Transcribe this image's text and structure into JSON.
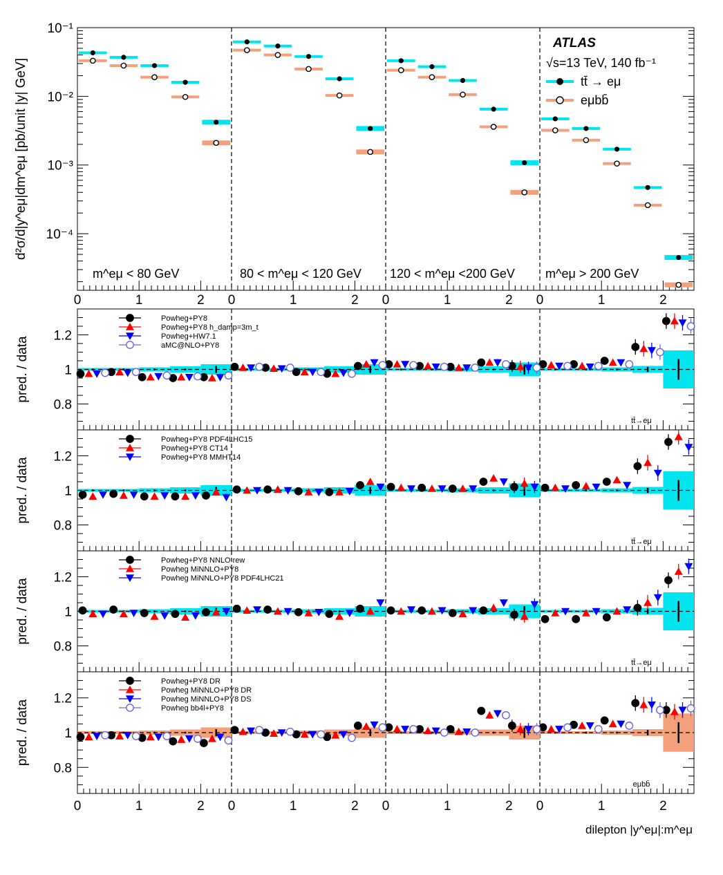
{
  "figure": {
    "experiment": "ATLAS",
    "energy_label": "√s=13 TeV, 140 fb⁻¹",
    "xlabel": "dilepton |y^eμ|:m^eμ",
    "colors": {
      "ttbar": "#00e5ef",
      "emubb": "#f4a07a",
      "black": "#000000",
      "red": "#ff0000",
      "blue": "#0000ff",
      "purple": "#6666dd"
    }
  },
  "chart_data": [
    {
      "type": "scatter",
      "panel": "main",
      "ylabel": "d²σ/d|y^eμ|dm^eμ [pb/unit |y| GeV]",
      "yscale": "log",
      "ylim": [
        1.5e-05,
        0.1
      ],
      "yticks": [
        "10⁻¹",
        "10⁻²",
        "10⁻³",
        "10⁻⁴"
      ],
      "mass_bins": [
        "m^eμ < 80 GeV",
        "80 < m^eμ < 120 GeV",
        "120 < m^eμ <200 GeV",
        "m^eμ > 200 GeV"
      ],
      "x_tick_labels": [
        "0",
        "1",
        "2"
      ],
      "x_bin_edges": [
        0,
        0.5,
        1.0,
        1.5,
        2.0,
        2.5
      ],
      "legend": [
        "tt̄ → eμ",
        "eμbb̄"
      ],
      "series": [
        {
          "name": "tt̄ → eμ",
          "values": [
            [
              0.043,
              0.037,
              0.028,
              0.016,
              0.0042
            ],
            [
              0.062,
              0.054,
              0.038,
              0.018,
              0.0034
            ],
            [
              0.033,
              0.027,
              0.017,
              0.0065,
              0.00108
            ],
            [
              0.0047,
              0.0034,
              0.0017,
              0.00047,
              4.5e-05
            ]
          ]
        },
        {
          "name": "eμbb̄",
          "values": [
            [
              0.033,
              0.028,
              0.019,
              0.0098,
              0.0021
            ],
            [
              0.047,
              0.04,
              0.025,
              0.0103,
              0.00155
            ],
            [
              0.024,
              0.019,
              0.0106,
              0.0036,
              0.0004
            ],
            [
              0.0032,
              0.0023,
              0.00105,
              0.00026,
              1.8e-05
            ]
          ]
        }
      ]
    },
    {
      "type": "scatter",
      "panel": "ratio-1",
      "ylabel": "pred. / data",
      "ylim": [
        0.65,
        1.35
      ],
      "yticks": [
        "1.2",
        "1",
        "0.8"
      ],
      "band": "tt̄",
      "label": "tt̄→eμ",
      "series": [
        {
          "name": "Powheg+PY8",
          "values": [
            0.975,
            0.985,
            0.955,
            0.95,
            0.955,
            1.015,
            1.01,
            0.985,
            0.975,
            1.02,
            1.03,
            1.02,
            1.015,
            1.04,
            1.02,
            1.03,
            1.03,
            1.05,
            1.13,
            1.28
          ]
        },
        {
          "name": "Powheg+PY8 h_damp=3m_t",
          "values": [
            0.975,
            0.985,
            0.955,
            0.955,
            0.95,
            1.01,
            1.005,
            0.985,
            0.975,
            1.03,
            1.03,
            1.02,
            1.01,
            1.04,
            1.015,
            1.025,
            1.02,
            1.04,
            1.12,
            1.28
          ]
        },
        {
          "name": "Powheg+HW7.1",
          "values": [
            0.975,
            0.98,
            0.96,
            0.955,
            0.955,
            1.01,
            1.005,
            0.985,
            0.98,
            1.04,
            1.03,
            1.015,
            1.01,
            1.04,
            1.01,
            1.02,
            1.015,
            1.04,
            1.11,
            1.27
          ]
        },
        {
          "name": "aMC@NLO+PY8",
          "values": [
            0.98,
            0.985,
            0.965,
            0.96,
            0.965,
            1.015,
            1.01,
            0.985,
            0.975,
            1.025,
            1.025,
            1.015,
            1.01,
            1.03,
            1.01,
            1.02,
            1.02,
            1.03,
            1.1,
            1.25
          ]
        }
      ]
    },
    {
      "type": "scatter",
      "panel": "ratio-2",
      "ylabel": "pred. / data",
      "ylim": [
        0.65,
        1.35
      ],
      "yticks": [
        "1.2",
        "1",
        "0.8"
      ],
      "band": "tt̄",
      "label": "tt̄→eμ",
      "series": [
        {
          "name": "Powheg+PY8 PDF4LHC15",
          "values": [
            0.975,
            0.98,
            0.965,
            0.965,
            0.97,
            1.005,
            1.005,
            0.995,
            0.99,
            1.03,
            1.02,
            1.015,
            1.01,
            1.05,
            1.02,
            1.015,
            1.03,
            1.05,
            1.14,
            1.28
          ]
        },
        {
          "name": "Powheg+PY8 CT14",
          "values": [
            0.965,
            0.97,
            0.965,
            0.965,
            0.99,
            1.0,
            1.005,
            0.99,
            0.99,
            1.05,
            1.015,
            1.01,
            1.01,
            1.07,
            1.04,
            1.015,
            1.025,
            1.06,
            1.16,
            1.31
          ]
        },
        {
          "name": "Powheg+PY8 MMHT14",
          "values": [
            0.975,
            0.975,
            0.97,
            0.97,
            0.96,
            1.0,
            1.0,
            0.99,
            0.995,
            1.02,
            1.01,
            1.01,
            1.01,
            1.05,
            1.02,
            1.01,
            1.02,
            1.03,
            1.1,
            1.25
          ]
        }
      ]
    },
    {
      "type": "scatter",
      "panel": "ratio-3",
      "ylabel": "pred. / data",
      "ylim": [
        0.65,
        1.35
      ],
      "yticks": [
        "1.2",
        "1",
        "0.8"
      ],
      "band": "tt̄",
      "label": "tt̄→eμ",
      "series": [
        {
          "name": "Powheg+PY8 NNLO rew",
          "values": [
            1.005,
            1.01,
            0.99,
            0.985,
            0.995,
            1.015,
            1.01,
            0.995,
            0.985,
            1.015,
            1.005,
            1.005,
            0.99,
            1.005,
            0.98,
            0.955,
            0.955,
            0.965,
            1.02,
            1.18
          ]
        },
        {
          "name": "Powheg MiNNLO+PY8",
          "values": [
            0.985,
            0.985,
            0.97,
            0.965,
            0.995,
            1.005,
            1.0,
            0.99,
            0.97,
            1.0,
            1.0,
            1.0,
            0.985,
            1.02,
            0.97,
            0.99,
            0.99,
            1.0,
            1.05,
            1.23
          ]
        },
        {
          "name": "Powheg MiNNLO+PY8 PDF4LHC21",
          "values": [
            0.985,
            0.99,
            0.975,
            0.975,
            1.0,
            1.01,
            1.0,
            0.995,
            0.99,
            1.05,
            1.01,
            1.005,
            1.005,
            1.05,
            1.04,
            1.0,
            1.0,
            1.01,
            1.08,
            1.26
          ]
        }
      ]
    },
    {
      "type": "scatter",
      "panel": "ratio-4",
      "ylabel": "pred. / data",
      "ylim": [
        0.65,
        1.35
      ],
      "yticks": [
        "1.2",
        "1",
        "0.8"
      ],
      "xticks": [
        "0",
        "1",
        "2"
      ],
      "band": "eμbb̄",
      "label": "eμbb̄",
      "series": [
        {
          "name": "Powheg+PY8 DR",
          "values": [
            0.975,
            0.985,
            0.97,
            0.95,
            0.94,
            1.015,
            1.0,
            0.99,
            0.975,
            1.04,
            1.03,
            1.02,
            1.02,
            1.125,
            1.04,
            1.03,
            1.045,
            1.07,
            1.17,
            1.13
          ]
        },
        {
          "name": "Powheg MiNNLO+PY8 DR",
          "values": [
            0.975,
            0.98,
            0.975,
            0.96,
            0.965,
            1.005,
            0.995,
            0.99,
            0.985,
            1.035,
            1.02,
            1.01,
            1.005,
            1.1,
            1.02,
            1.02,
            1.04,
            1.05,
            1.16,
            1.12
          ]
        },
        {
          "name": "Powheg MiNNLO+PY8 DS",
          "values": [
            0.98,
            0.985,
            0.975,
            0.965,
            0.975,
            1.01,
            1.0,
            0.99,
            0.99,
            1.045,
            1.02,
            1.01,
            1.005,
            1.11,
            1.02,
            1.02,
            1.04,
            1.05,
            1.16,
            1.13
          ]
        },
        {
          "name": "Powheg bb4l+PY8",
          "values": [
            0.985,
            0.98,
            0.98,
            0.965,
            0.955,
            1.015,
            1.005,
            0.99,
            0.97,
            1.03,
            1.02,
            1.0,
            1.0,
            1.1,
            1.02,
            1.03,
            1.02,
            1.04,
            1.13,
            1.14
          ]
        }
      ]
    }
  ]
}
